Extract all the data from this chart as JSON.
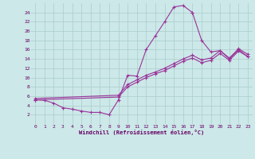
{
  "background_color": "#cce8e8",
  "line_color": "#993399",
  "grid_color": "#aacccc",
  "xlabel": "Windchill (Refroidissement éolien,°C)",
  "xlabel_color": "#660066",
  "tick_color": "#660066",
  "xlim": [
    -0.5,
    23.5
  ],
  "ylim": [
    0,
    26
  ],
  "yticks": [
    2,
    4,
    6,
    8,
    10,
    12,
    14,
    16,
    18,
    20,
    22,
    24
  ],
  "xticks": [
    0,
    1,
    2,
    3,
    4,
    5,
    6,
    7,
    8,
    9,
    10,
    11,
    12,
    13,
    14,
    15,
    16,
    17,
    18,
    19,
    20,
    21,
    22,
    23
  ],
  "line1_x": [
    0,
    1,
    2,
    3,
    4,
    5,
    6,
    7,
    8,
    9,
    10,
    11,
    12,
    13,
    14,
    15,
    16,
    17
  ],
  "line1_y": [
    5.2,
    5.1,
    4.5,
    3.5,
    3.2,
    2.8,
    2.5,
    2.5,
    2.0,
    5.2,
    10.5,
    10.3,
    16.0,
    19.0,
    22.0,
    25.2,
    25.5,
    24.0
  ],
  "line2_x": [
    17,
    18,
    19,
    20,
    21,
    22,
    23
  ],
  "line2_y": [
    24.0,
    18.0,
    15.5,
    15.8,
    14.0,
    16.0,
    14.5
  ],
  "line3_x": [
    0,
    9,
    10,
    11,
    12,
    13,
    14,
    15,
    16,
    17,
    18,
    19,
    20,
    21,
    22,
    23
  ],
  "line3_y": [
    5.5,
    6.2,
    8.5,
    9.5,
    10.5,
    11.2,
    12.0,
    13.0,
    14.0,
    14.8,
    13.8,
    14.2,
    15.8,
    14.2,
    16.2,
    15.0
  ],
  "line4_x": [
    0,
    9,
    10,
    11,
    12,
    13,
    14,
    15,
    16,
    17,
    18,
    19,
    20,
    21,
    22,
    23
  ],
  "line4_y": [
    5.2,
    5.8,
    8.0,
    9.0,
    10.0,
    10.8,
    11.5,
    12.5,
    13.5,
    14.2,
    13.2,
    13.7,
    15.2,
    13.7,
    15.7,
    14.5
  ],
  "marker": "+",
  "markersize": 3,
  "linewidth": 0.8
}
